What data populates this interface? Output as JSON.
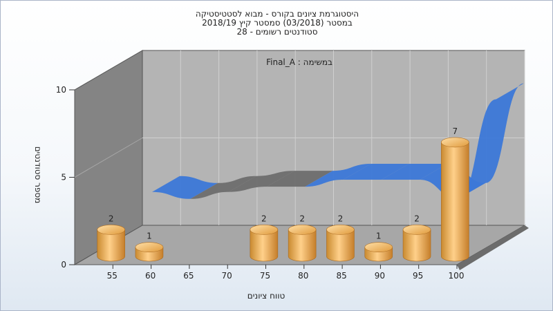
{
  "chart_data": {
    "type": "bar",
    "title_lines": [
      "היסטוגרמת ציונים בקורס - מבוא לסטטיסטיקה",
      "במסטר  (03/2018)  סמסטר קיץ  2018/19",
      "סטודנטים רשומים - 28"
    ],
    "subtitle": "Final_A : במשימה",
    "xlabel": "טווח ציונים",
    "ylabel": "מספר סטודנטים",
    "categories": [
      "55",
      "60",
      "65",
      "70",
      "75",
      "80",
      "85",
      "90",
      "95",
      "100"
    ],
    "values": [
      2,
      1,
      0,
      0,
      2,
      2,
      2,
      1,
      2,
      7
    ],
    "ylim": [
      0,
      10
    ],
    "yticks": [
      "0",
      "5",
      "10"
    ],
    "trend_line": [
      2.7,
      2.3,
      2.7,
      3.0,
      3.0,
      3.4,
      3.4,
      3.4,
      2.3,
      8.0
    ],
    "colors": {
      "bar": "#e8a040",
      "back_wall": "#b4b4b4",
      "side_wall": "#848484",
      "floor": "#a7a7a7",
      "trend_blue": "#3c78d8",
      "trend_gray": "#6e6e6e"
    }
  }
}
